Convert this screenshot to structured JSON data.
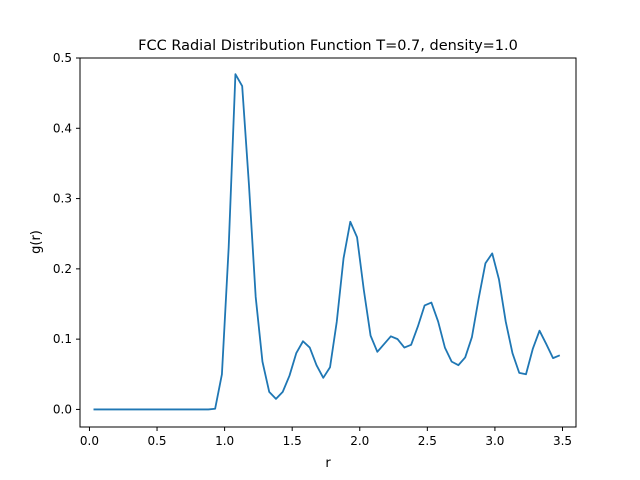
{
  "chart_data": {
    "type": "line",
    "title": "FCC Radial Distribution Function T=0.7, density=1.0",
    "xlabel": "r",
    "ylabel": "g(r)",
    "xlim": [
      -0.07,
      3.6
    ],
    "ylim": [
      -0.025,
      0.5
    ],
    "xticks": [
      "0.0",
      "0.5",
      "1.0",
      "1.5",
      "2.0",
      "2.5",
      "3.0",
      "3.5"
    ],
    "yticks": [
      "0.0",
      "0.1",
      "0.2",
      "0.3",
      "0.4",
      "0.5"
    ],
    "grid": false,
    "line_color": "#1f77b4",
    "series": [
      {
        "x": [
          0.03,
          0.08,
          0.13,
          0.18,
          0.23,
          0.28,
          0.33,
          0.38,
          0.43,
          0.48,
          0.53,
          0.58,
          0.63,
          0.68,
          0.73,
          0.78,
          0.83,
          0.88,
          0.93,
          0.98,
          1.03,
          1.08,
          1.13,
          1.18,
          1.23,
          1.28,
          1.33,
          1.38,
          1.43,
          1.48,
          1.53,
          1.58,
          1.63,
          1.68,
          1.73,
          1.78,
          1.83,
          1.88,
          1.93,
          1.98,
          2.03,
          2.08,
          2.13,
          2.18,
          2.23,
          2.28,
          2.33,
          2.38,
          2.43,
          2.48,
          2.53,
          2.58,
          2.63,
          2.68,
          2.73,
          2.78,
          2.83,
          2.88,
          2.93,
          2.98,
          3.03,
          3.08,
          3.13,
          3.18,
          3.23,
          3.28,
          3.33,
          3.38,
          3.43,
          3.48
        ],
        "y": [
          0.0,
          0.0,
          0.0,
          0.0,
          0.0,
          0.0,
          0.0,
          0.0,
          0.0,
          0.0,
          0.0,
          0.0,
          0.0,
          0.0,
          0.0,
          0.0,
          0.0,
          0.0,
          0.001,
          0.05,
          0.23,
          0.477,
          0.46,
          0.32,
          0.16,
          0.068,
          0.025,
          0.015,
          0.025,
          0.048,
          0.08,
          0.097,
          0.088,
          0.063,
          0.045,
          0.06,
          0.125,
          0.215,
          0.267,
          0.245,
          0.17,
          0.105,
          0.082,
          0.093,
          0.104,
          0.1,
          0.088,
          0.092,
          0.118,
          0.148,
          0.152,
          0.125,
          0.088,
          0.068,
          0.063,
          0.074,
          0.103,
          0.158,
          0.208,
          0.222,
          0.185,
          0.125,
          0.08,
          0.052,
          0.05,
          0.086,
          0.112,
          0.093,
          0.073,
          0.077
        ]
      }
    ]
  }
}
